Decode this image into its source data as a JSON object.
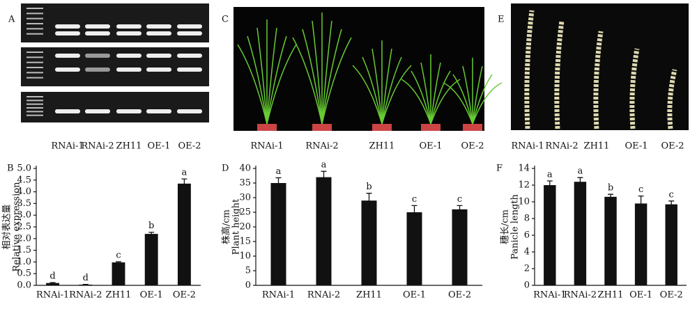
{
  "image_panels": [
    {
      "label": "A",
      "lanes": [
        "RNAi-1",
        "RNAi-2",
        "ZH11",
        "OE-1",
        "OE-2"
      ]
    },
    {
      "label": "C",
      "lanes": [
        "RNAi-1",
        "RNAi-2",
        "ZH11",
        "OE-1",
        "OE-2"
      ]
    },
    {
      "label": "E",
      "lanes": [
        "RNAi-1",
        "RNAi-2",
        "ZH11",
        "OE-1",
        "OE-2"
      ]
    }
  ],
  "chart_data": [
    {
      "type": "bar",
      "panel": "B",
      "ylabel_cn": "相对表达量",
      "ylabel": "Relative expression",
      "categories": [
        "RNAi-1",
        "RNAi-2",
        "ZH11",
        "OE-1",
        "OE-2"
      ],
      "values": [
        0.1,
        0.03,
        0.98,
        2.2,
        4.35
      ],
      "errors": [
        0.02,
        0.01,
        0.03,
        0.07,
        0.2
      ],
      "letters": [
        "d",
        "d",
        "c",
        "b",
        "a"
      ],
      "color": "#111111",
      "ylim": [
        0,
        5
      ],
      "yticks": [
        {
          "value": 0,
          "label": "0.0"
        },
        0.5,
        {
          "value": 1,
          "label": "1.0"
        },
        1.5,
        {
          "value": 2,
          "label": "2.0"
        },
        2.5,
        {
          "value": 3,
          "label": "3.0"
        },
        3.5,
        {
          "value": 4,
          "label": "4.0"
        },
        4.5,
        {
          "value": 5,
          "label": "5.0"
        }
      ]
    },
    {
      "type": "bar",
      "panel": "D",
      "ylabel_cn": "株高/cm",
      "ylabel": "Plant height",
      "categories": [
        "RNAi-1",
        "RNAi-2",
        "ZH11",
        "OE-1",
        "OE-2"
      ],
      "values": [
        35,
        37,
        29,
        25,
        26
      ],
      "errors": [
        1.8,
        2,
        2.5,
        2.3,
        1.3
      ],
      "letters": [
        "a",
        "a",
        "b",
        "c",
        "c"
      ],
      "color": "#111111",
      "ylim": [
        0,
        40
      ],
      "yticks": [
        0,
        5,
        10,
        15,
        20,
        25,
        30,
        35,
        40
      ]
    },
    {
      "type": "bar",
      "panel": "F",
      "ylabel_cn": "穗长/cm",
      "ylabel": "Panicle length",
      "categories": [
        "RNAi-1",
        "RNAi-2",
        "ZH11",
        "OE-1",
        "OE-2"
      ],
      "values": [
        12,
        12.4,
        10.6,
        9.8,
        9.7
      ],
      "errors": [
        0.5,
        0.5,
        0.3,
        0.9,
        0.4
      ],
      "letters": [
        "a",
        "a",
        "b",
        "c",
        "c"
      ],
      "color": "#111111",
      "ylim": [
        0,
        14
      ],
      "yticks": [
        0,
        2,
        4,
        6,
        8,
        10,
        12,
        14
      ]
    }
  ]
}
